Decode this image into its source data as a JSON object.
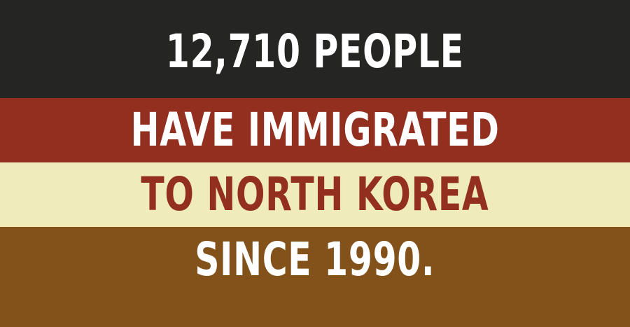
{
  "lines": [
    {
      "text": "12,710 PEOPLE",
      "background": "#252523",
      "color": "#ffffff"
    },
    {
      "text": "HAVE IMMIGRATED",
      "background": "#922f1f",
      "color": "#ffffff"
    },
    {
      "text": "TO NORTH KOREA",
      "background": "#f0ebbb",
      "color": "#922f1f"
    },
    {
      "text": "SINCE 1990.",
      "background": "#82521a",
      "color": "#ffffff"
    }
  ]
}
